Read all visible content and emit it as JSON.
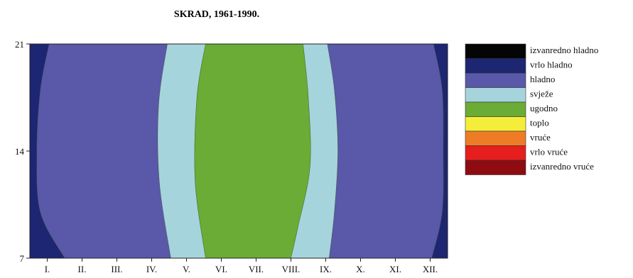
{
  "chart_data": {
    "type": "heatmap",
    "title": "SKRAD, 1961-1990.",
    "x_categories": [
      "I.",
      "II.",
      "III.",
      "IV.",
      "V.",
      "VI.",
      "VII.",
      "VIII.",
      "IX.",
      "X.",
      "XI.",
      "XII."
    ],
    "y_ticks": [
      7,
      14,
      21
    ],
    "ylim": [
      7,
      21
    ],
    "legend": [
      {
        "label": "izvanredno hladno",
        "color": "#050505"
      },
      {
        "label": "vrlo hladno",
        "color": "#1c2672"
      },
      {
        "label": "hladno",
        "color": "#5a58a8"
      },
      {
        "label": "svježe",
        "color": "#a6d4dc"
      },
      {
        "label": "ugodno",
        "color": "#6aac35"
      },
      {
        "label": "toplo",
        "color": "#f4ee3a"
      },
      {
        "label": "vruće",
        "color": "#ee7c26"
      },
      {
        "label": "vrlo vruće",
        "color": "#e61e1e"
      },
      {
        "label": "izvanredno vruće",
        "color": "#8e0b10"
      }
    ],
    "regions": [
      {
        "category": "vrlo hladno",
        "left_edge": [
          [
            0.0,
            21
          ],
          [
            0.0,
            7
          ]
        ],
        "right_edge": [
          [
            0.55,
            21
          ],
          [
            0.3,
            18
          ],
          [
            0.2,
            14
          ],
          [
            0.3,
            10
          ],
          [
            1.0,
            7
          ]
        ]
      },
      {
        "category": "hladno",
        "left_edge": [
          [
            0.55,
            21
          ],
          [
            0.3,
            18
          ],
          [
            0.2,
            14
          ],
          [
            0.3,
            10
          ],
          [
            1.0,
            7
          ]
        ],
        "right_edge": [
          [
            3.95,
            21
          ],
          [
            3.7,
            17
          ],
          [
            3.72,
            12
          ],
          [
            4.05,
            7
          ]
        ]
      },
      {
        "category": "svježe",
        "left_edge": [
          [
            3.95,
            21
          ],
          [
            3.7,
            17
          ],
          [
            3.72,
            12
          ],
          [
            4.05,
            7
          ]
        ],
        "right_edge": [
          [
            5.05,
            21
          ],
          [
            4.8,
            17.5
          ],
          [
            4.75,
            12
          ],
          [
            5.05,
            7
          ]
        ]
      },
      {
        "category": "ugodno",
        "left_edge": [
          [
            5.05,
            21
          ],
          [
            4.8,
            17.5
          ],
          [
            4.75,
            12
          ],
          [
            5.05,
            7
          ]
        ],
        "right_edge": [
          [
            7.85,
            21
          ],
          [
            8.0,
            17.5
          ],
          [
            8.05,
            13
          ],
          [
            7.7,
            9
          ],
          [
            7.5,
            7
          ]
        ]
      },
      {
        "category": "svježe",
        "left_edge": [
          [
            7.85,
            21
          ],
          [
            8.0,
            17.5
          ],
          [
            8.05,
            13
          ],
          [
            7.7,
            9
          ],
          [
            7.5,
            7
          ]
        ],
        "right_edge": [
          [
            8.55,
            21
          ],
          [
            8.75,
            18
          ],
          [
            8.85,
            14
          ],
          [
            8.75,
            10
          ],
          [
            8.6,
            7
          ]
        ]
      },
      {
        "category": "hladno",
        "left_edge": [
          [
            8.55,
            21
          ],
          [
            8.75,
            18
          ],
          [
            8.85,
            14
          ],
          [
            8.75,
            10
          ],
          [
            8.6,
            7
          ]
        ],
        "right_edge": [
          [
            11.6,
            21
          ],
          [
            11.85,
            18
          ],
          [
            11.88,
            14
          ],
          [
            11.85,
            10
          ],
          [
            11.55,
            7
          ]
        ]
      },
      {
        "category": "vrlo hladno",
        "left_edge": [
          [
            11.6,
            21
          ],
          [
            11.85,
            18
          ],
          [
            11.88,
            14
          ],
          [
            11.85,
            10
          ],
          [
            11.55,
            7
          ]
        ],
        "right_edge": [
          [
            12.0,
            21
          ],
          [
            12.0,
            7
          ]
        ]
      }
    ]
  }
}
